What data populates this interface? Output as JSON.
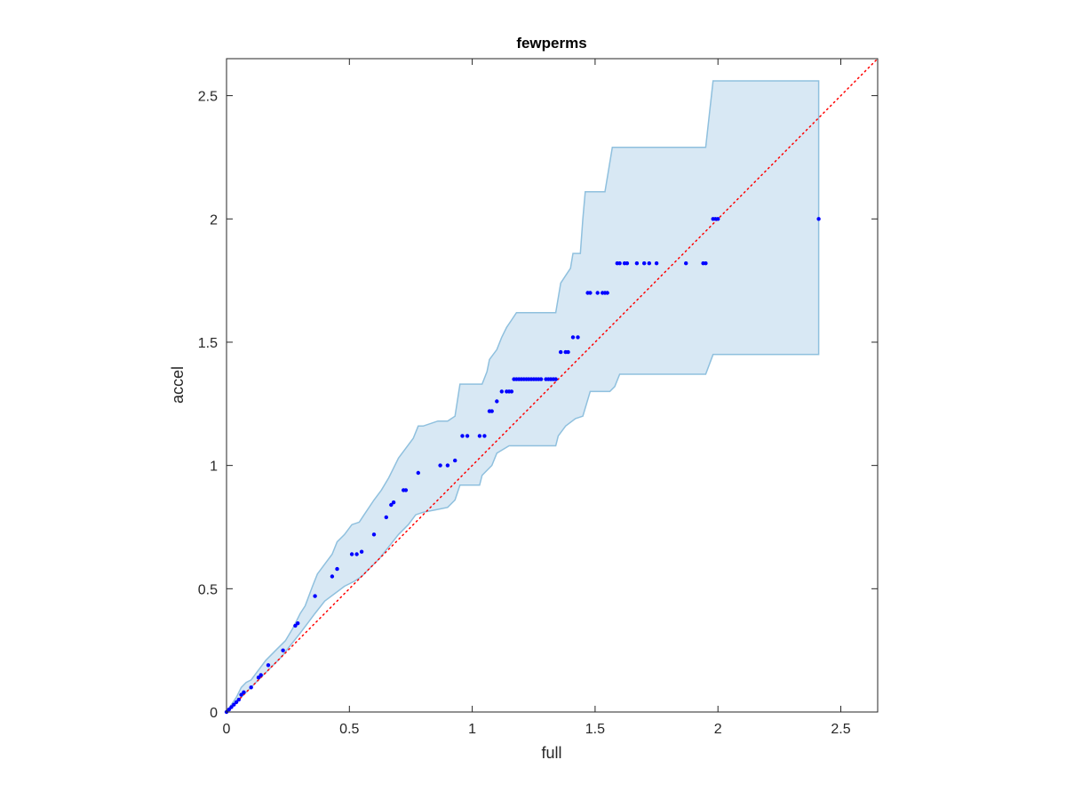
{
  "chart_data": {
    "type": "scatter",
    "title": "fewperms",
    "xlabel": "full",
    "ylabel": "accel",
    "xlim": [
      0,
      2.65
    ],
    "ylim": [
      0,
      2.65
    ],
    "xticks": [
      0,
      0.5,
      1,
      1.5,
      2,
      2.5
    ],
    "yticks": [
      0,
      0.5,
      1,
      1.5,
      2,
      2.5
    ],
    "xtick_labels": [
      "0",
      "0.5",
      "1",
      "1.5",
      "2",
      "2.5"
    ],
    "ytick_labels": [
      "0",
      "0.5",
      "1",
      "1.5",
      "2",
      "2.5"
    ],
    "grid": false,
    "box": true,
    "colors": {
      "points": "#0000ff",
      "band_fill": "#d8e8f4",
      "band_edge": "#8fc0de",
      "reference_line": "#ff0000",
      "axes": "#262626"
    },
    "reference_line": {
      "style": "dotted",
      "from": [
        0,
        0
      ],
      "to": [
        2.65,
        2.65
      ]
    },
    "band": {
      "upper": [
        [
          0,
          0
        ],
        [
          0.02,
          0.03
        ],
        [
          0.04,
          0.06
        ],
        [
          0.06,
          0.1
        ],
        [
          0.08,
          0.12
        ],
        [
          0.1,
          0.13
        ],
        [
          0.13,
          0.17
        ],
        [
          0.16,
          0.21
        ],
        [
          0.2,
          0.25
        ],
        [
          0.24,
          0.29
        ],
        [
          0.27,
          0.34
        ],
        [
          0.3,
          0.4
        ],
        [
          0.32,
          0.43
        ],
        [
          0.35,
          0.51
        ],
        [
          0.37,
          0.56
        ],
        [
          0.4,
          0.6
        ],
        [
          0.43,
          0.64
        ],
        [
          0.45,
          0.69
        ],
        [
          0.48,
          0.72
        ],
        [
          0.51,
          0.76
        ],
        [
          0.54,
          0.77
        ],
        [
          0.56,
          0.8
        ],
        [
          0.6,
          0.86
        ],
        [
          0.63,
          0.9
        ],
        [
          0.66,
          0.95
        ],
        [
          0.68,
          0.99
        ],
        [
          0.7,
          1.03
        ],
        [
          0.73,
          1.07
        ],
        [
          0.76,
          1.11
        ],
        [
          0.78,
          1.16
        ],
        [
          0.8,
          1.16
        ],
        [
          0.86,
          1.18
        ],
        [
          0.9,
          1.18
        ],
        [
          0.93,
          1.2
        ],
        [
          0.95,
          1.33
        ],
        [
          1.0,
          1.33
        ],
        [
          1.04,
          1.33
        ],
        [
          1.06,
          1.38
        ],
        [
          1.07,
          1.43
        ],
        [
          1.1,
          1.47
        ],
        [
          1.12,
          1.52
        ],
        [
          1.14,
          1.56
        ],
        [
          1.16,
          1.59
        ],
        [
          1.18,
          1.62
        ],
        [
          1.34,
          1.62
        ],
        [
          1.36,
          1.74
        ],
        [
          1.4,
          1.8
        ],
        [
          1.41,
          1.86
        ],
        [
          1.44,
          1.86
        ],
        [
          1.45,
          2.0
        ],
        [
          1.46,
          2.11
        ],
        [
          1.54,
          2.11
        ],
        [
          1.57,
          2.29
        ],
        [
          1.95,
          2.29
        ],
        [
          1.98,
          2.56
        ],
        [
          2.41,
          2.56
        ]
      ],
      "lower": [
        [
          2.41,
          1.45
        ],
        [
          1.98,
          1.45
        ],
        [
          1.95,
          1.37
        ],
        [
          1.6,
          1.37
        ],
        [
          1.58,
          1.32
        ],
        [
          1.56,
          1.3
        ],
        [
          1.48,
          1.3
        ],
        [
          1.45,
          1.2
        ],
        [
          1.42,
          1.19
        ],
        [
          1.38,
          1.16
        ],
        [
          1.35,
          1.12
        ],
        [
          1.34,
          1.08
        ],
        [
          1.15,
          1.08
        ],
        [
          1.1,
          1.05
        ],
        [
          1.08,
          1.0
        ],
        [
          1.04,
          0.96
        ],
        [
          1.03,
          0.92
        ],
        [
          0.95,
          0.92
        ],
        [
          0.93,
          0.86
        ],
        [
          0.9,
          0.83
        ],
        [
          0.85,
          0.82
        ],
        [
          0.8,
          0.81
        ],
        [
          0.77,
          0.8
        ],
        [
          0.74,
          0.76
        ],
        [
          0.7,
          0.72
        ],
        [
          0.66,
          0.67
        ],
        [
          0.62,
          0.62
        ],
        [
          0.58,
          0.58
        ],
        [
          0.55,
          0.55
        ],
        [
          0.52,
          0.53
        ],
        [
          0.48,
          0.51
        ],
        [
          0.44,
          0.48
        ],
        [
          0.4,
          0.45
        ],
        [
          0.36,
          0.4
        ],
        [
          0.33,
          0.36
        ],
        [
          0.3,
          0.32
        ],
        [
          0.26,
          0.27
        ],
        [
          0.22,
          0.22
        ],
        [
          0.18,
          0.18
        ],
        [
          0.15,
          0.15
        ],
        [
          0.12,
          0.12
        ],
        [
          0.09,
          0.09
        ],
        [
          0.06,
          0.06
        ],
        [
          0.03,
          0.03
        ],
        [
          0.01,
          0.01
        ],
        [
          0,
          0
        ]
      ]
    },
    "points": [
      [
        0.0,
        0.0
      ],
      [
        0.01,
        0.01
      ],
      [
        0.02,
        0.02
      ],
      [
        0.03,
        0.03
      ],
      [
        0.04,
        0.04
      ],
      [
        0.05,
        0.05
      ],
      [
        0.06,
        0.07
      ],
      [
        0.07,
        0.08
      ],
      [
        0.1,
        0.1
      ],
      [
        0.13,
        0.14
      ],
      [
        0.14,
        0.15
      ],
      [
        0.17,
        0.19
      ],
      [
        0.23,
        0.25
      ],
      [
        0.28,
        0.35
      ],
      [
        0.29,
        0.36
      ],
      [
        0.36,
        0.47
      ],
      [
        0.43,
        0.55
      ],
      [
        0.45,
        0.58
      ],
      [
        0.51,
        0.64
      ],
      [
        0.53,
        0.64
      ],
      [
        0.55,
        0.65
      ],
      [
        0.6,
        0.72
      ],
      [
        0.65,
        0.79
      ],
      [
        0.67,
        0.84
      ],
      [
        0.68,
        0.85
      ],
      [
        0.72,
        0.9
      ],
      [
        0.73,
        0.9
      ],
      [
        0.78,
        0.97
      ],
      [
        0.87,
        1.0
      ],
      [
        0.9,
        1.0
      ],
      [
        0.93,
        1.02
      ],
      [
        0.96,
        1.12
      ],
      [
        0.98,
        1.12
      ],
      [
        1.03,
        1.12
      ],
      [
        1.05,
        1.12
      ],
      [
        1.07,
        1.22
      ],
      [
        1.08,
        1.22
      ],
      [
        1.1,
        1.26
      ],
      [
        1.12,
        1.3
      ],
      [
        1.14,
        1.3
      ],
      [
        1.15,
        1.3
      ],
      [
        1.16,
        1.3
      ],
      [
        1.17,
        1.35
      ],
      [
        1.18,
        1.35
      ],
      [
        1.19,
        1.35
      ],
      [
        1.2,
        1.35
      ],
      [
        1.21,
        1.35
      ],
      [
        1.22,
        1.35
      ],
      [
        1.23,
        1.35
      ],
      [
        1.24,
        1.35
      ],
      [
        1.25,
        1.35
      ],
      [
        1.26,
        1.35
      ],
      [
        1.27,
        1.35
      ],
      [
        1.28,
        1.35
      ],
      [
        1.3,
        1.35
      ],
      [
        1.31,
        1.35
      ],
      [
        1.32,
        1.35
      ],
      [
        1.33,
        1.35
      ],
      [
        1.34,
        1.35
      ],
      [
        1.36,
        1.46
      ],
      [
        1.38,
        1.46
      ],
      [
        1.39,
        1.46
      ],
      [
        1.41,
        1.52
      ],
      [
        1.43,
        1.52
      ],
      [
        1.47,
        1.7
      ],
      [
        1.48,
        1.7
      ],
      [
        1.51,
        1.7
      ],
      [
        1.53,
        1.7
      ],
      [
        1.54,
        1.7
      ],
      [
        1.55,
        1.7
      ],
      [
        1.59,
        1.82
      ],
      [
        1.6,
        1.82
      ],
      [
        1.62,
        1.82
      ],
      [
        1.63,
        1.82
      ],
      [
        1.67,
        1.82
      ],
      [
        1.7,
        1.82
      ],
      [
        1.72,
        1.82
      ],
      [
        1.75,
        1.82
      ],
      [
        1.87,
        1.82
      ],
      [
        1.94,
        1.82
      ],
      [
        1.95,
        1.82
      ],
      [
        1.98,
        2.0
      ],
      [
        1.99,
        2.0
      ],
      [
        2.0,
        2.0
      ],
      [
        2.41,
        2.0
      ]
    ]
  }
}
